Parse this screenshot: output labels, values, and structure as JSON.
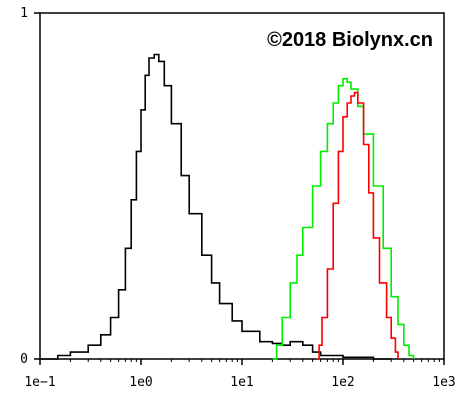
{
  "chart_data": {
    "type": "line",
    "title": "",
    "xlabel": "",
    "ylabel": "",
    "x_scale": "log",
    "xlim": [
      0.1,
      1000
    ],
    "ylim": [
      0,
      1
    ],
    "x_tick_labels": [
      "1e−1",
      "1e0",
      "1e1",
      "1e2",
      "1e3"
    ],
    "y_tick_labels": [
      "0",
      "1"
    ],
    "annotation": "©2018 Biolynx.cn",
    "grid": false,
    "series": [
      {
        "color": "#000000",
        "points": [
          [
            0.1,
            0.0
          ],
          [
            0.15,
            0.01
          ],
          [
            0.2,
            0.02
          ],
          [
            0.3,
            0.04
          ],
          [
            0.4,
            0.07
          ],
          [
            0.5,
            0.12
          ],
          [
            0.6,
            0.2
          ],
          [
            0.7,
            0.32
          ],
          [
            0.8,
            0.46
          ],
          [
            0.9,
            0.6
          ],
          [
            1.0,
            0.72
          ],
          [
            1.1,
            0.82
          ],
          [
            1.2,
            0.87
          ],
          [
            1.35,
            0.88
          ],
          [
            1.5,
            0.86
          ],
          [
            1.7,
            0.79
          ],
          [
            2.0,
            0.68
          ],
          [
            2.5,
            0.53
          ],
          [
            3.0,
            0.42
          ],
          [
            4.0,
            0.3
          ],
          [
            5.0,
            0.22
          ],
          [
            6.0,
            0.16
          ],
          [
            8.0,
            0.11
          ],
          [
            10.0,
            0.08
          ],
          [
            15.0,
            0.05
          ],
          [
            20.0,
            0.045
          ],
          [
            25.0,
            0.04
          ],
          [
            30.0,
            0.05
          ],
          [
            40.0,
            0.04
          ],
          [
            50.0,
            0.02
          ],
          [
            60.0,
            0.01
          ],
          [
            80.0,
            0.01
          ],
          [
            100.0,
            0.005
          ],
          [
            200.0,
            0.0
          ],
          [
            300.0,
            0.0
          ]
        ]
      },
      {
        "color": "#00ee00",
        "points": [
          [
            20,
            0.0
          ],
          [
            22,
            0.04
          ],
          [
            25,
            0.12
          ],
          [
            30,
            0.22
          ],
          [
            35,
            0.3
          ],
          [
            40,
            0.38
          ],
          [
            50,
            0.5
          ],
          [
            60,
            0.6
          ],
          [
            70,
            0.68
          ],
          [
            80,
            0.74
          ],
          [
            90,
            0.79
          ],
          [
            100,
            0.81
          ],
          [
            110,
            0.8
          ],
          [
            120,
            0.78
          ],
          [
            140,
            0.73
          ],
          [
            160,
            0.65
          ],
          [
            200,
            0.5
          ],
          [
            250,
            0.32
          ],
          [
            300,
            0.18
          ],
          [
            350,
            0.1
          ],
          [
            400,
            0.04
          ],
          [
            450,
            0.01
          ],
          [
            500,
            0.0
          ]
        ]
      },
      {
        "color": "#ff0000",
        "points": [
          [
            55,
            0.0
          ],
          [
            58,
            0.04
          ],
          [
            62,
            0.12
          ],
          [
            70,
            0.26
          ],
          [
            80,
            0.45
          ],
          [
            90,
            0.6
          ],
          [
            100,
            0.7
          ],
          [
            110,
            0.74
          ],
          [
            120,
            0.76
          ],
          [
            130,
            0.77
          ],
          [
            140,
            0.74
          ],
          [
            160,
            0.62
          ],
          [
            180,
            0.48
          ],
          [
            200,
            0.35
          ],
          [
            230,
            0.22
          ],
          [
            270,
            0.12
          ],
          [
            300,
            0.06
          ],
          [
            330,
            0.02
          ],
          [
            350,
            0.0
          ]
        ]
      }
    ]
  }
}
